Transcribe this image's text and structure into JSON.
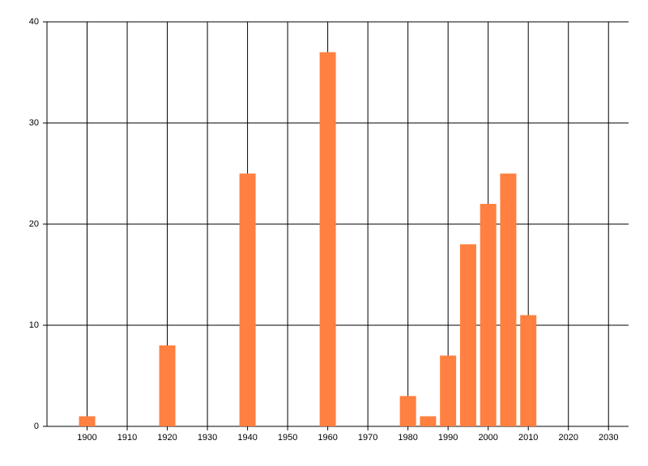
{
  "chart_data": {
    "type": "bar",
    "x": [
      1900,
      1920,
      1940,
      1960,
      1980,
      1985,
      1990,
      1995,
      2000,
      2005,
      2010
    ],
    "values": [
      1,
      8,
      25,
      37,
      3,
      1,
      7,
      18,
      22,
      25,
      11
    ],
    "color": "#ff8040",
    "xlim": [
      1890,
      2035
    ],
    "xticks": [
      1900,
      1910,
      1920,
      1930,
      1940,
      1950,
      1960,
      1970,
      1980,
      1990,
      2000,
      2010,
      2020,
      2030
    ],
    "ylim": [
      0,
      40
    ],
    "yticks": [
      0,
      10,
      20,
      30,
      40
    ],
    "grid": true
  }
}
